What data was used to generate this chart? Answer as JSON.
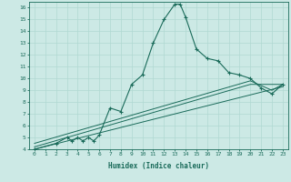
{
  "xlabel": "Humidex (Indice chaleur)",
  "bg_color": "#cce9e5",
  "line_color": "#1a6b5a",
  "grid_color": "#b0d8d2",
  "xlim": [
    -0.5,
    23.5
  ],
  "ylim": [
    4,
    16.5
  ],
  "xticks": [
    0,
    1,
    2,
    3,
    4,
    5,
    6,
    7,
    8,
    9,
    10,
    11,
    12,
    13,
    14,
    15,
    16,
    17,
    18,
    19,
    20,
    21,
    22,
    23
  ],
  "yticks": [
    4,
    5,
    6,
    7,
    8,
    9,
    10,
    11,
    12,
    13,
    14,
    15,
    16
  ],
  "main_line": {
    "x": [
      0,
      2,
      3,
      3.5,
      4,
      4.5,
      5,
      5.5,
      6,
      7,
      8,
      9,
      10,
      11,
      12,
      13,
      13.5,
      14,
      15,
      16,
      17,
      18,
      19,
      20,
      21,
      22,
      23
    ],
    "y": [
      4,
      4.5,
      5,
      4.7,
      5,
      4.7,
      5,
      4.7,
      5.2,
      7.5,
      7.2,
      9.5,
      10.3,
      13,
      15,
      16.3,
      16.3,
      15.2,
      12.5,
      11.7,
      11.5,
      10.5,
      10.3,
      10,
      9.2,
      8.7,
      9.5
    ]
  },
  "smooth_lines": [
    {
      "x": [
        0,
        23
      ],
      "y": [
        4.0,
        9.3
      ]
    },
    {
      "x": [
        0,
        20,
        23
      ],
      "y": [
        4.2,
        9.5,
        9.5
      ]
    },
    {
      "x": [
        0,
        20,
        22,
        23
      ],
      "y": [
        4.5,
        9.8,
        9.0,
        9.5
      ]
    }
  ]
}
